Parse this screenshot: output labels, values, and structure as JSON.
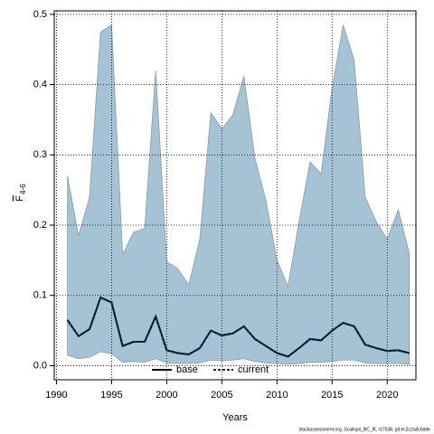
{
  "chart_data": {
    "type": "line",
    "x_label": "Years",
    "y_label": {
      "main": "F",
      "subscript": "4-6"
    },
    "footer": "stockassessment.org, Scallops_BC_fit, r17538, git:ec2c2a0c6dde",
    "x": [
      1991,
      1992,
      1993,
      1994,
      1995,
      1996,
      1997,
      1998,
      1999,
      2000,
      2001,
      2002,
      2003,
      2004,
      2005,
      2006,
      2007,
      2008,
      2009,
      2010,
      2011,
      2012,
      2013,
      2014,
      2015,
      2016,
      2017,
      2018,
      2019,
      2020,
      2021,
      2022
    ],
    "band": {
      "color": "#a5c3d4",
      "upper": [
        0.27,
        0.185,
        0.24,
        0.475,
        0.485,
        0.158,
        0.19,
        0.195,
        0.42,
        0.148,
        0.138,
        0.115,
        0.18,
        0.36,
        0.337,
        0.357,
        0.412,
        0.295,
        0.235,
        0.15,
        0.113,
        0.205,
        0.29,
        0.273,
        0.395,
        0.485,
        0.435,
        0.24,
        0.205,
        0.18,
        0.222,
        0.16
      ],
      "lower": [
        0.015,
        0.01,
        0.012,
        0.02,
        0.017,
        0.005,
        0.006,
        0.005,
        0.01,
        0.004,
        0.003,
        0.003,
        0.004,
        0.008,
        0.007,
        0.008,
        0.01,
        0.006,
        0.004,
        0.003,
        0.002,
        0.003,
        0.005,
        0.005,
        0.006,
        0.008,
        0.008,
        0.004,
        0.003,
        0.003,
        0.003,
        0.002
      ]
    },
    "series": [
      {
        "name": "base",
        "color": "#000000",
        "dashed": false,
        "values": [
          0.065,
          0.042,
          0.052,
          0.097,
          0.09,
          0.028,
          0.034,
          0.034,
          0.07,
          0.022,
          0.018,
          0.016,
          0.025,
          0.05,
          0.043,
          0.046,
          0.056,
          0.038,
          0.028,
          0.018,
          0.013,
          0.025,
          0.038,
          0.036,
          0.05,
          0.061,
          0.056,
          0.03,
          0.025,
          0.021,
          0.022,
          0.018
        ]
      },
      {
        "name": "current",
        "color": "#00334d",
        "dashed": true,
        "values": [
          0.065,
          0.042,
          0.052,
          0.097,
          0.09,
          0.028,
          0.034,
          0.034,
          0.07,
          0.022,
          0.018,
          0.016,
          0.025,
          0.05,
          0.043,
          0.046,
          0.056,
          0.038,
          0.028,
          0.018,
          0.013,
          0.025,
          0.038,
          0.036,
          0.05,
          0.061,
          0.056,
          0.03,
          0.025,
          0.021,
          0.022,
          0.018
        ]
      }
    ],
    "xlim": [
      1989.8,
      2022.6
    ],
    "xticks": [
      1990,
      1995,
      2000,
      2005,
      2010,
      2015,
      2020
    ],
    "ylim": [
      -0.02,
      0.505
    ],
    "yticks": [
      {
        "value": 0,
        "label": "0.0"
      },
      0.1,
      0.2,
      0.3,
      0.4,
      0.5
    ],
    "grid": true,
    "legend": "bottom"
  }
}
